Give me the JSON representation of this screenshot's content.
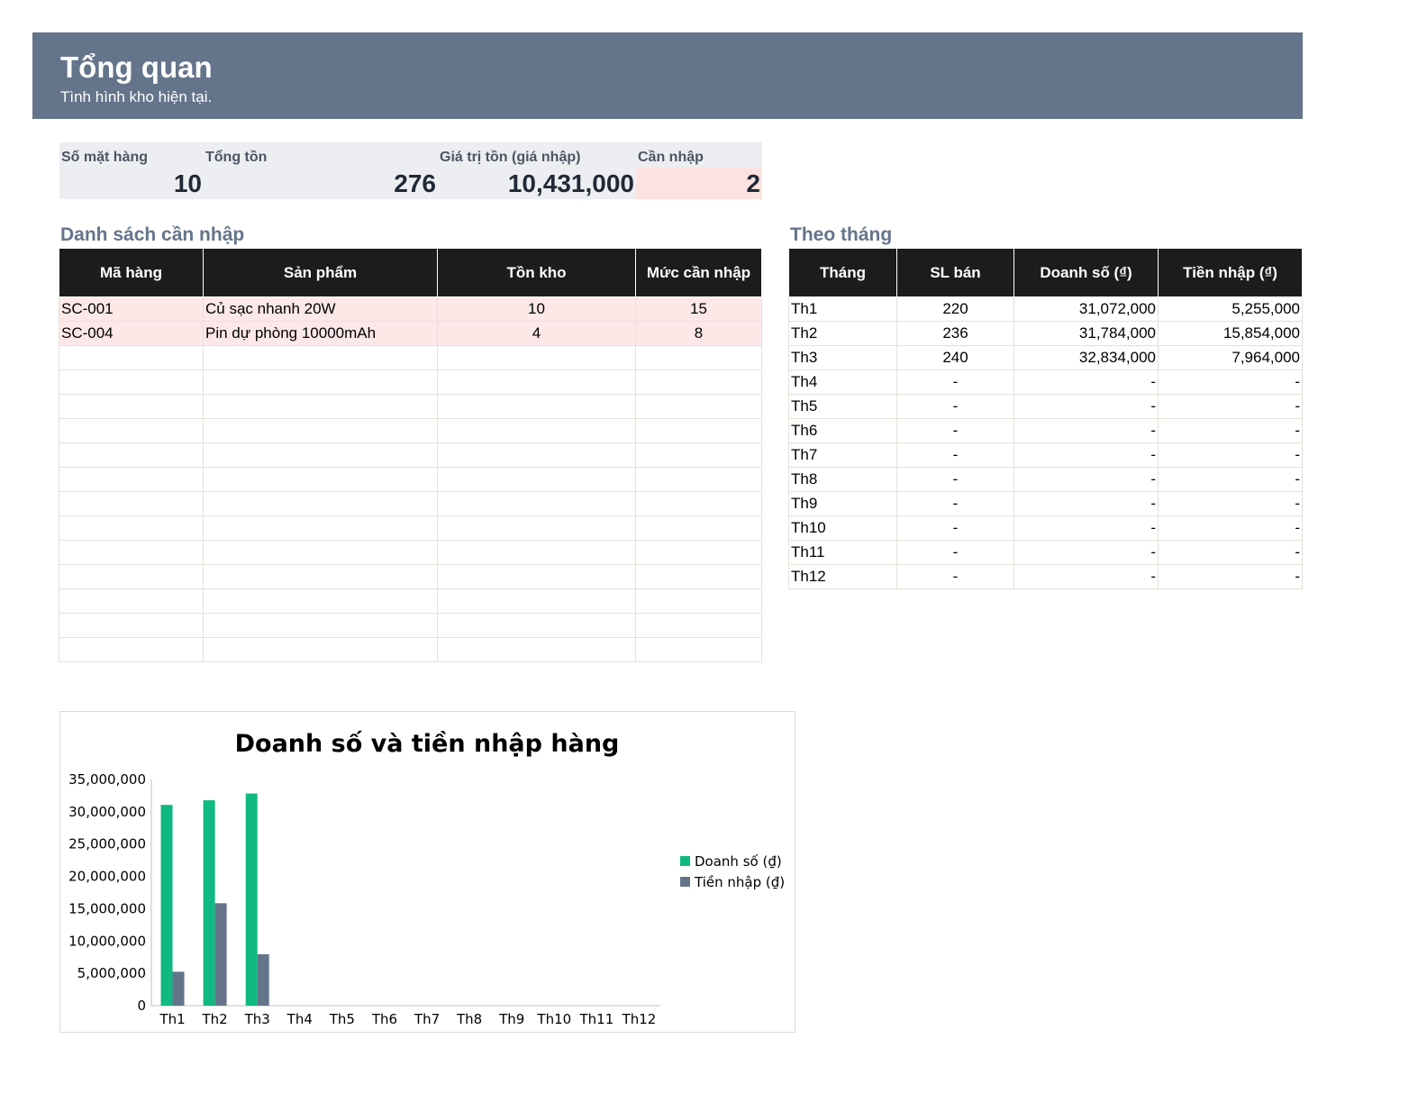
{
  "header": {
    "title": "Tổng quan",
    "subtitle": "Tình hình kho hiện tại."
  },
  "kpis": [
    {
      "label": "Số mặt hàng",
      "value": "10"
    },
    {
      "label": "Tổng tồn",
      "value": "276"
    },
    {
      "label": "Giá trị tồn (giá nhập)",
      "value": "10,431,000"
    },
    {
      "label": "Cần nhập",
      "value": "2",
      "highlight_color": "#fde2e2"
    }
  ],
  "restock": {
    "title": "Danh sách cần nhập",
    "columns": [
      "Mã hàng",
      "Sản phẩm",
      "Tồn kho",
      "Mức cần nhập"
    ],
    "rows": [
      [
        "SC-001",
        "Củ sạc nhanh 20W",
        "10",
        "15"
      ],
      [
        "SC-004",
        "Pin dự phòng 10000mAh",
        "4",
        "8"
      ],
      [
        "",
        "",
        "",
        ""
      ],
      [
        "",
        "",
        "",
        ""
      ],
      [
        "",
        "",
        "",
        ""
      ],
      [
        "",
        "",
        "",
        ""
      ],
      [
        "",
        "",
        "",
        ""
      ],
      [
        "",
        "",
        "",
        ""
      ],
      [
        "",
        "",
        "",
        ""
      ],
      [
        "",
        "",
        "",
        ""
      ],
      [
        "",
        "",
        "",
        ""
      ],
      [
        "",
        "",
        "",
        ""
      ],
      [
        "",
        "",
        "",
        ""
      ],
      [
        "",
        "",
        "",
        ""
      ],
      [
        "",
        "",
        "",
        ""
      ]
    ]
  },
  "monthly": {
    "title": "Theo tháng",
    "columns": [
      "Tháng",
      "SL bán",
      "Doanh số (₫)",
      "Tiền nhập (₫)"
    ],
    "rows": [
      [
        "Th1",
        "220",
        "31,072,000",
        "5,255,000"
      ],
      [
        "Th2",
        "236",
        "31,784,000",
        "15,854,000"
      ],
      [
        "Th3",
        "240",
        "32,834,000",
        "7,964,000"
      ],
      [
        "Th4",
        "-",
        "-",
        "-"
      ],
      [
        "Th5",
        "-",
        "-",
        "-"
      ],
      [
        "Th6",
        "-",
        "-",
        "-"
      ],
      [
        "Th7",
        "-",
        "-",
        "-"
      ],
      [
        "Th8",
        "-",
        "-",
        "-"
      ],
      [
        "Th9",
        "-",
        "-",
        "-"
      ],
      [
        "Th10",
        "-",
        "-",
        "-"
      ],
      [
        "Th11",
        "-",
        "-",
        "-"
      ],
      [
        "Th12",
        "-",
        "-",
        "-"
      ]
    ]
  },
  "colors": {
    "banner": "#64748b",
    "header_row": "#1c1c1c",
    "need_row": "#fde8e8",
    "series_sales": "#10b981",
    "series_import": "#64748b"
  },
  "chart_data": {
    "type": "bar",
    "title": "Doanh số và tiền nhập hàng",
    "categories": [
      "Th1",
      "Th2",
      "Th3",
      "Th4",
      "Th5",
      "Th6",
      "Th7",
      "Th8",
      "Th9",
      "Th10",
      "Th11",
      "Th12"
    ],
    "series": [
      {
        "name": "Doanh số (₫)",
        "color": "#10b981",
        "values": [
          31072000,
          31784000,
          32834000,
          0,
          0,
          0,
          0,
          0,
          0,
          0,
          0,
          0
        ]
      },
      {
        "name": "Tiền nhập (₫)",
        "color": "#64748b",
        "values": [
          5255000,
          15854000,
          7964000,
          0,
          0,
          0,
          0,
          0,
          0,
          0,
          0,
          0
        ]
      }
    ],
    "ylim": [
      0,
      35000000
    ],
    "yticks": [
      "0",
      "5,000,000",
      "10,000,000",
      "15,000,000",
      "20,000,000",
      "25,000,000",
      "30,000,000",
      "35,000,000"
    ],
    "legend": "right",
    "grid": false
  }
}
